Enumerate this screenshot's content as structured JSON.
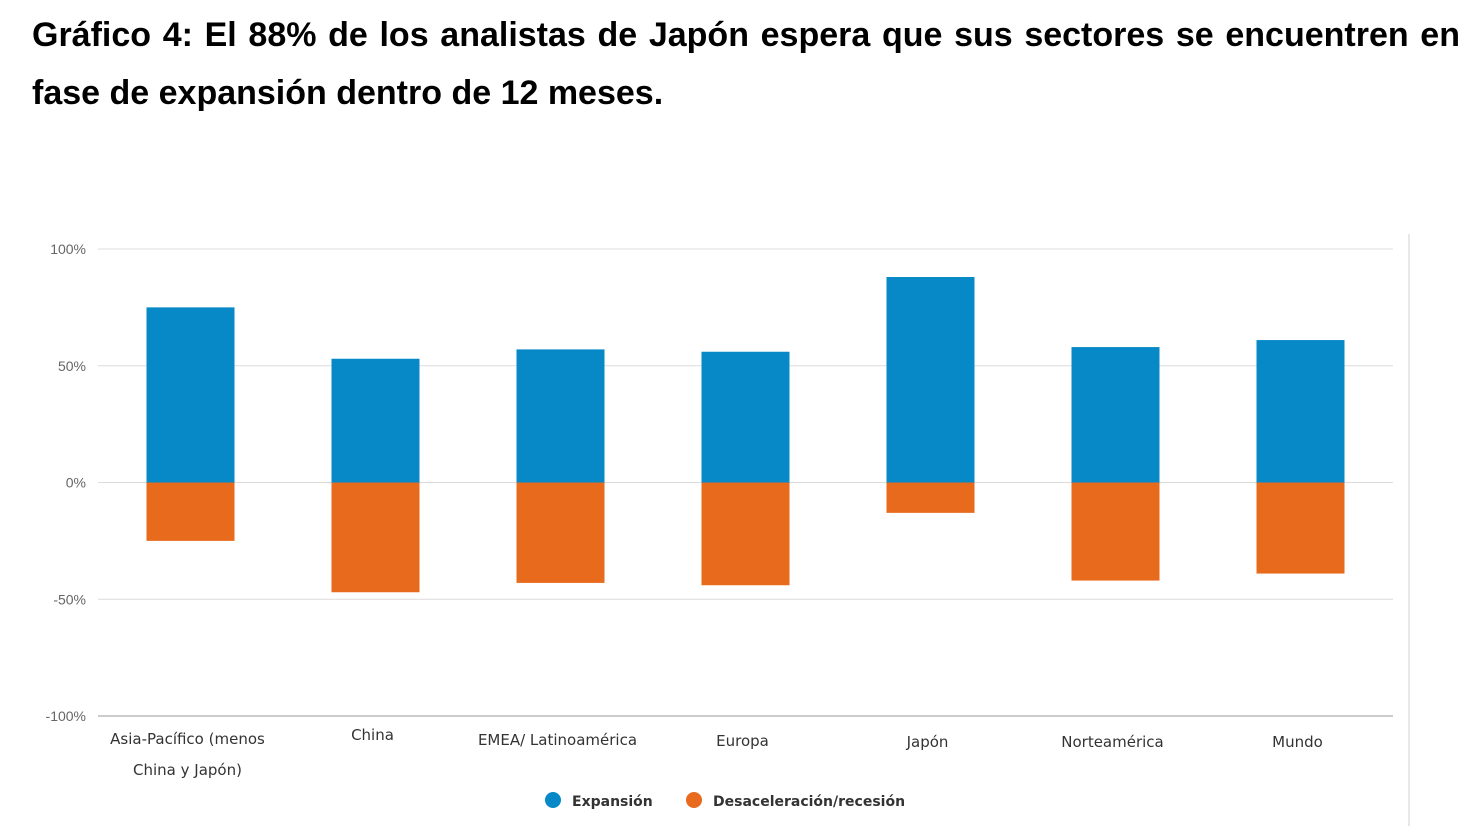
{
  "title": "Gráfico 4: El 88% de los analistas de Japón espera que sus sectores se encuentren en fase de expansión dentro de 12 meses.",
  "chart_data": {
    "type": "bar",
    "stacked_diverging": true,
    "title": "Gráfico 4: El 88% de los analistas de Japón espera que sus sectores se encuentren en fase de expansión dentro de 12 meses.",
    "xlabel": "",
    "ylabel": "",
    "ylim": [
      -100,
      100
    ],
    "yticks": [
      100,
      50,
      0,
      -50,
      -100
    ],
    "ytick_labels": [
      "100%",
      "50%",
      "0%",
      "-50%",
      "-100%"
    ],
    "grid": true,
    "legend_position": "bottom-center",
    "categories": [
      [
        "Asia-Pacífico (menos",
        "China y Japón)"
      ],
      [
        "China"
      ],
      [
        "EMEA/ Latinoamérica"
      ],
      [
        "Europa"
      ],
      [
        "Japón"
      ],
      [
        "Norteamérica"
      ],
      [
        "Mundo"
      ]
    ],
    "series": [
      {
        "name": "Expansión",
        "color": "#0789C7",
        "values": [
          75,
          53,
          57,
          56,
          88,
          58,
          61
        ]
      },
      {
        "name": "Desaceleración/recesión",
        "color": "#E86A1C",
        "values": [
          -25,
          -47,
          -43,
          -44,
          -13,
          -42,
          -39
        ]
      }
    ]
  }
}
